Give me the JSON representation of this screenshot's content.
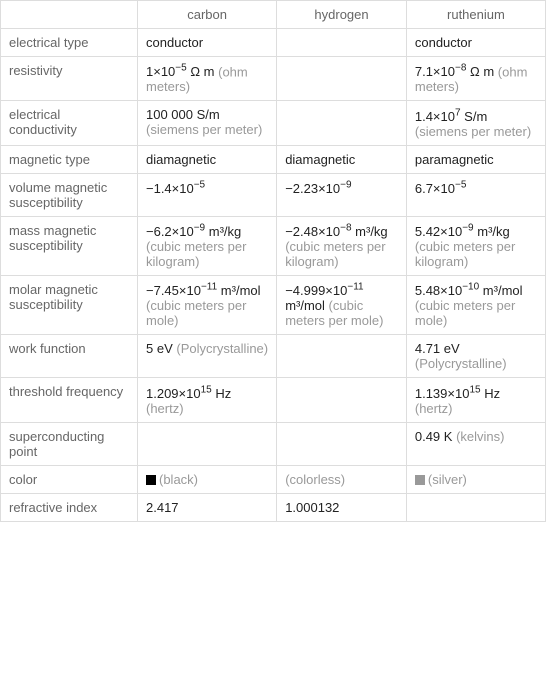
{
  "headers": [
    "",
    "carbon",
    "hydrogen",
    "ruthenium"
  ],
  "rows": [
    {
      "label": "electrical type",
      "cells": [
        {
          "val": "conductor"
        },
        {
          "val": ""
        },
        {
          "val": "conductor"
        }
      ]
    },
    {
      "label": "resistivity",
      "cells": [
        {
          "prefix": "1×10",
          "sup": "−5",
          "suffix": " Ω m",
          "unit": "(ohm meters)"
        },
        {
          "val": ""
        },
        {
          "prefix": "7.1×10",
          "sup": "−8",
          "suffix": " Ω m",
          "unit": "(ohm meters)"
        }
      ]
    },
    {
      "label": "electrical conductivity",
      "cells": [
        {
          "val": "100 000 S/m",
          "unit": "(siemens per meter)"
        },
        {
          "val": ""
        },
        {
          "prefix": "1.4×10",
          "sup": "7",
          "suffix": " S/m",
          "unit": "(siemens per meter)"
        }
      ]
    },
    {
      "label": "magnetic type",
      "cells": [
        {
          "val": "diamagnetic"
        },
        {
          "val": "diamagnetic"
        },
        {
          "val": "paramagnetic"
        }
      ]
    },
    {
      "label": "volume magnetic susceptibility",
      "cells": [
        {
          "prefix": "−1.4×10",
          "sup": "−5",
          "suffix": ""
        },
        {
          "prefix": "−2.23×10",
          "sup": "−9",
          "suffix": ""
        },
        {
          "prefix": "6.7×10",
          "sup": "−5",
          "suffix": ""
        }
      ]
    },
    {
      "label": "mass magnetic susceptibility",
      "cells": [
        {
          "prefix": "−6.2×10",
          "sup": "−9",
          "suffix": " m³/kg",
          "unit": "(cubic meters per kilogram)"
        },
        {
          "prefix": "−2.48×10",
          "sup": "−8",
          "suffix": " m³/kg",
          "unit": "(cubic meters per kilogram)"
        },
        {
          "prefix": "5.42×10",
          "sup": "−9",
          "suffix": " m³/kg",
          "unit": "(cubic meters per kilogram)"
        }
      ]
    },
    {
      "label": "molar magnetic susceptibility",
      "cells": [
        {
          "prefix": "−7.45×10",
          "sup": "−11",
          "suffix": " m³/mol",
          "unit": "(cubic meters per mole)"
        },
        {
          "prefix": "−4.999×10",
          "sup": "−11",
          "suffix": " m³/mol",
          "unit": "(cubic meters per mole)"
        },
        {
          "prefix": "5.48×10",
          "sup": "−10",
          "suffix": " m³/mol",
          "unit": "(cubic meters per mole)"
        }
      ]
    },
    {
      "label": "work function",
      "cells": [
        {
          "val": "5 eV",
          "unit": "(Polycrystalline)"
        },
        {
          "val": ""
        },
        {
          "val": "4.71 eV",
          "unit": "(Polycrystalline)"
        }
      ]
    },
    {
      "label": "threshold frequency",
      "cells": [
        {
          "prefix": "1.209×10",
          "sup": "15",
          "suffix": " Hz",
          "unit": "(hertz)"
        },
        {
          "val": ""
        },
        {
          "prefix": "1.139×10",
          "sup": "15",
          "suffix": " Hz",
          "unit": "(hertz)"
        }
      ]
    },
    {
      "label": "superconducting point",
      "cells": [
        {
          "val": ""
        },
        {
          "val": ""
        },
        {
          "val": "0.49 K",
          "unit": "(kelvins)"
        }
      ]
    },
    {
      "label": "color",
      "cells": [
        {
          "swatch": "#000000",
          "unit": "(black)"
        },
        {
          "unit": "(colorless)"
        },
        {
          "swatch": "#999999",
          "unit": "(silver)"
        }
      ]
    },
    {
      "label": "refractive index",
      "cells": [
        {
          "val": "2.417"
        },
        {
          "val": "1.000132"
        },
        {
          "val": ""
        }
      ]
    }
  ]
}
